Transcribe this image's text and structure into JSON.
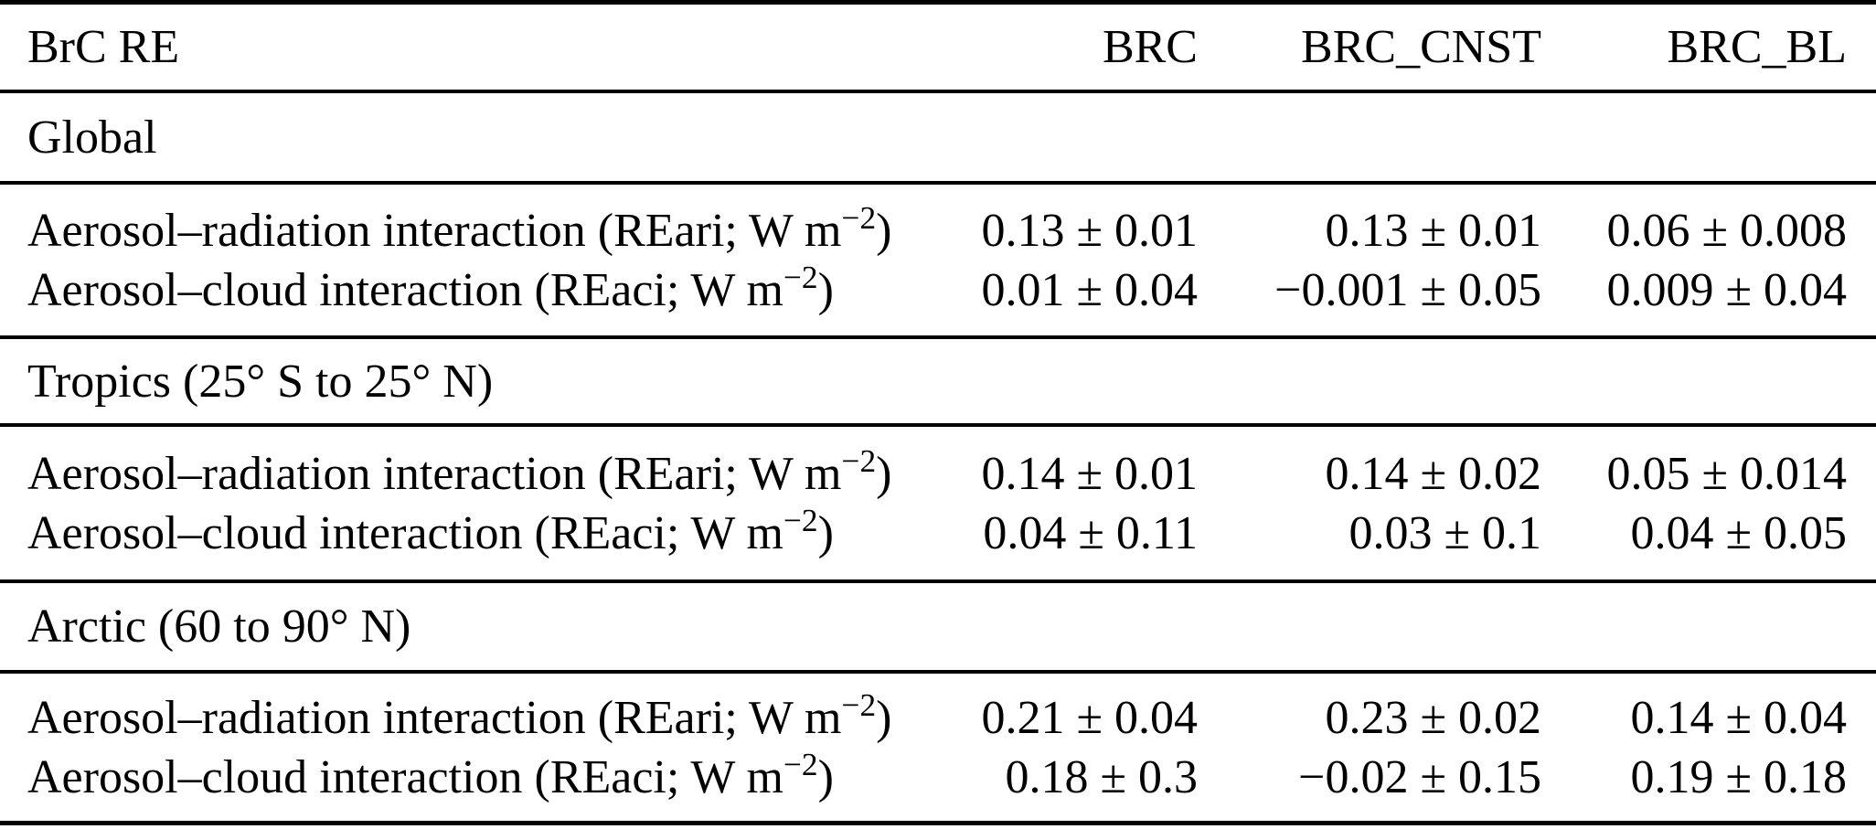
{
  "table": {
    "corner_label": "BrC RE",
    "column_headers": [
      "BRC",
      "BRC_CNST",
      "BRC_BL"
    ],
    "sections": [
      {
        "title": "Global",
        "rows": [
          {
            "label_text": "Aerosol–radiation interaction (REari; W m",
            "label_sup": "−2",
            "label_end": ")",
            "values": [
              "0.13 ± 0.01",
              "0.13 ± 0.01",
              "0.06 ± 0.008"
            ]
          },
          {
            "label_text": "Aerosol–cloud interaction (REaci; W m",
            "label_sup": "−2",
            "label_end": ")",
            "values": [
              "0.01 ± 0.04",
              "−0.001 ± 0.05",
              "0.009 ± 0.04"
            ]
          }
        ]
      },
      {
        "title": "Tropics (25° S to 25° N)",
        "rows": [
          {
            "label_text": "Aerosol–radiation interaction (REari; W m",
            "label_sup": "−2",
            "label_end": ")",
            "values": [
              "0.14 ± 0.01",
              "0.14 ± 0.02",
              "0.05 ± 0.014"
            ]
          },
          {
            "label_text": "Aerosol–cloud interaction (REaci; W m",
            "label_sup": "−2",
            "label_end": ")",
            "values": [
              "0.04 ± 0.11",
              "0.03 ± 0.1",
              "0.04 ± 0.05"
            ]
          }
        ]
      },
      {
        "title": "Arctic (60 to 90° N)",
        "rows": [
          {
            "label_text": "Aerosol–radiation interaction (REari; W m",
            "label_sup": "−2",
            "label_end": ")",
            "values": [
              "0.21 ± 0.04",
              "0.23 ± 0.02",
              "0.14 ± 0.04"
            ]
          },
          {
            "label_text": "Aerosol–cloud interaction (REaci; W m",
            "label_sup": "−2",
            "label_end": ")",
            "values": [
              "0.18 ± 0.3",
              "−0.02 ± 0.15",
              "0.19 ± 0.18"
            ]
          }
        ]
      }
    ],
    "colors": {
      "text": "#000000",
      "background": "#ffffff",
      "rule": "#000000"
    }
  },
  "chart_data": {
    "type": "table",
    "title": "BrC RE",
    "columns": [
      "BrC RE",
      "BRC",
      "BRC_CNST",
      "BRC_BL"
    ],
    "sections": [
      {
        "group": "Global",
        "rows": [
          [
            "Aerosol–radiation interaction (REari; W m−2)",
            "0.13 ± 0.01",
            "0.13 ± 0.01",
            "0.06 ± 0.008"
          ],
          [
            "Aerosol–cloud interaction (REaci; W m−2)",
            "0.01 ± 0.04",
            "−0.001 ± 0.05",
            "0.009 ± 0.04"
          ]
        ]
      },
      {
        "group": "Tropics (25° S to 25° N)",
        "rows": [
          [
            "Aerosol–radiation interaction (REari; W m−2)",
            "0.14 ± 0.01",
            "0.14 ± 0.02",
            "0.05 ± 0.014"
          ],
          [
            "Aerosol–cloud interaction (REaci; W m−2)",
            "0.04 ± 0.11",
            "0.03 ± 0.1",
            "0.04 ± 0.05"
          ]
        ]
      },
      {
        "group": "Arctic (60 to 90° N)",
        "rows": [
          [
            "Aerosol–radiation interaction (REari; W m−2)",
            "0.21 ± 0.04",
            "0.23 ± 0.02",
            "0.14 ± 0.04"
          ],
          [
            "Aerosol–cloud interaction (REaci; W m−2)",
            "0.18 ± 0.3",
            "−0.02 ± 0.15",
            "0.19 ± 0.18"
          ]
        ]
      }
    ]
  }
}
